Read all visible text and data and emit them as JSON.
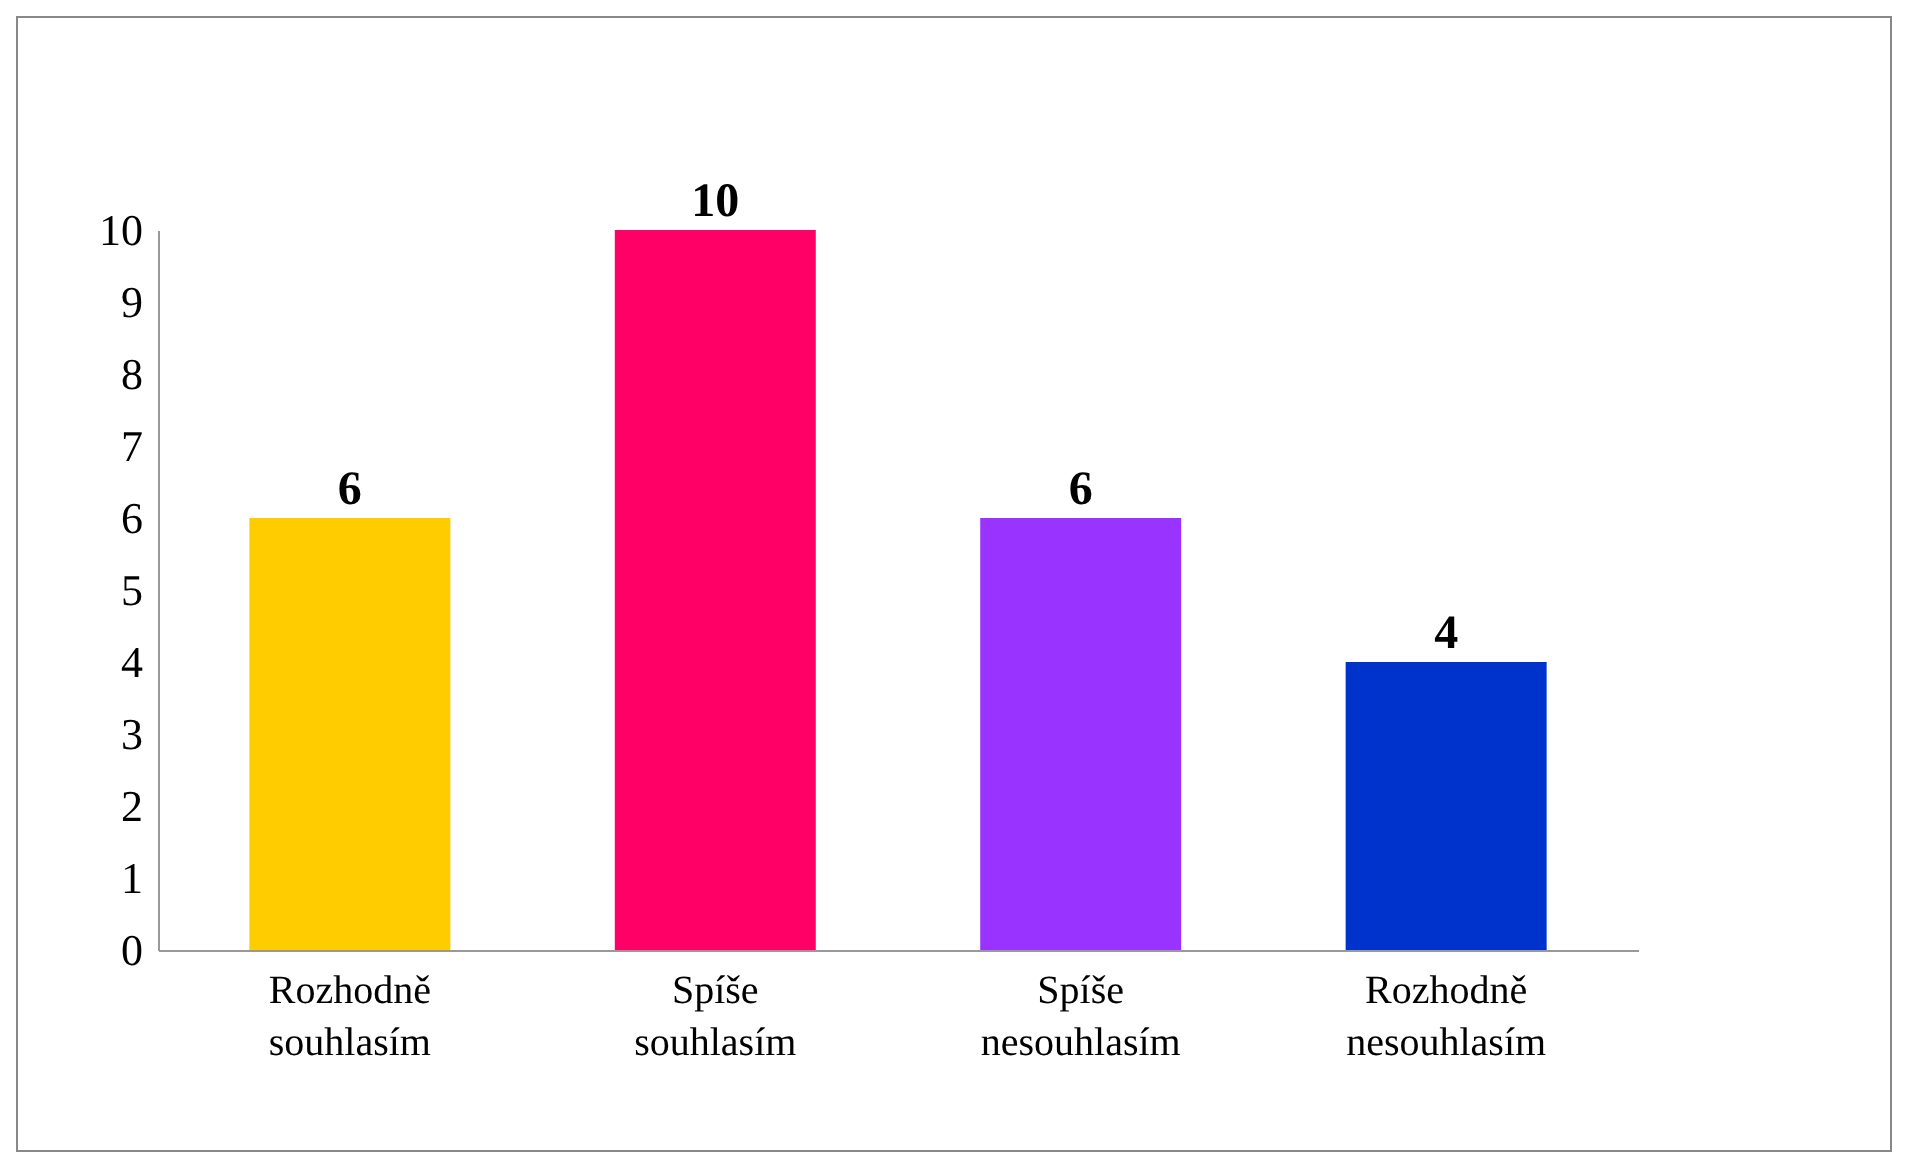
{
  "chart_data": {
    "type": "bar",
    "categories": [
      "Rozhodně souhlasím",
      "Spíše souhlasím",
      "Spíše nesouhlasím",
      "Rozhodně nesouhlasím"
    ],
    "values": [
      6,
      10,
      6,
      4
    ],
    "colors": [
      "#ffcc00",
      "#ff0066",
      "#9933ff",
      "#0033cc"
    ],
    "ylim": [
      0,
      10
    ],
    "yticks": [
      0,
      1,
      2,
      3,
      4,
      5,
      6,
      7,
      8,
      9,
      10
    ],
    "data_labels": true,
    "grid": false
  }
}
